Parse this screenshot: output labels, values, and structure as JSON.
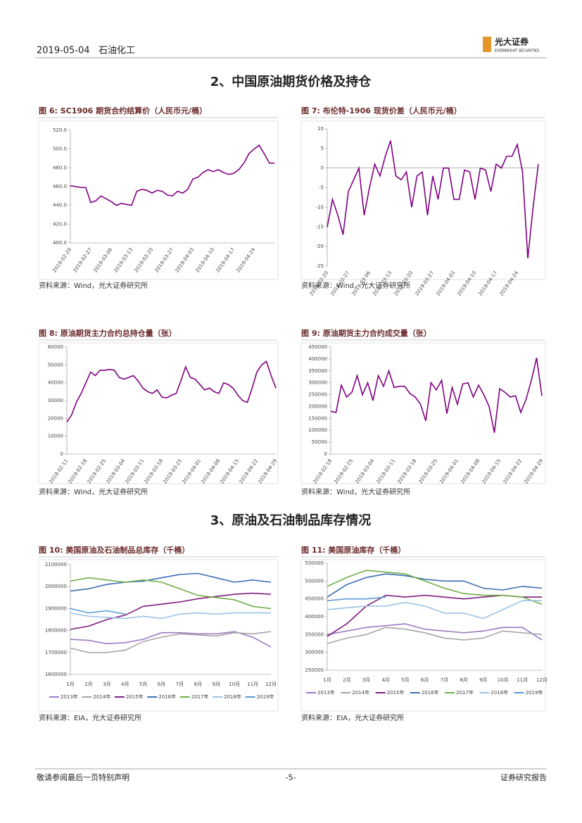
{
  "header": {
    "date": "2019-05-04",
    "sector": "石油化工",
    "logo_cn": "光大证券",
    "logo_en": "EVERBRIGHT SECURITIES"
  },
  "sections": [
    "2、中国原油期货价格及持仓",
    "3、原油及石油制品库存情况"
  ],
  "chart_data": [
    {
      "type": "line",
      "title": "图 6: SC1906 期货合约结算价（人民币元/桶）",
      "source": "资料来源：Wind，光大证券研究所",
      "color": "#800080",
      "categories": [
        "2019-02-20",
        null,
        null,
        null,
        "2019-02-27",
        null,
        null,
        null,
        "2019-03-06",
        null,
        null,
        null,
        "2019-03-13",
        null,
        null,
        null,
        "2019-03-20",
        null,
        null,
        null,
        "2019-03-27",
        null,
        null,
        null,
        "2019-04-03",
        null,
        null,
        null,
        "2019-04-10",
        null,
        null,
        null,
        "2019-04-17",
        null,
        null,
        null,
        "2019-04-24",
        null,
        null,
        null,
        null
      ],
      "values": [
        461,
        460,
        459,
        459,
        443,
        445,
        450,
        447,
        444,
        440,
        442,
        441,
        440,
        455,
        457,
        456,
        453,
        456,
        455,
        451,
        450,
        455,
        453,
        457,
        468,
        470,
        475,
        478,
        476,
        478,
        475,
        473,
        474,
        478,
        485,
        495,
        500,
        504,
        495,
        485,
        485
      ],
      "ylim": [
        400,
        520
      ],
      "yticks": [
        {
          "value": 400,
          "label": "400.0"
        },
        {
          "value": 420,
          "label": "420.0"
        },
        {
          "value": 440,
          "label": "440.0"
        },
        {
          "value": 460,
          "label": "460.0"
        },
        {
          "value": 480,
          "label": "480.0"
        },
        {
          "value": 500,
          "label": "500.0"
        },
        {
          "value": 520,
          "label": "520.0"
        }
      ]
    },
    {
      "type": "line",
      "title": "图 7: 布伦特-1906 现货价差（人民币元/桶）",
      "source": "资料来源：Wind，光大证券研究所",
      "color": "#800080",
      "categories": [
        "2019-02-20",
        null,
        null,
        null,
        "2019-02-27",
        null,
        null,
        null,
        "2019-03-06",
        null,
        null,
        null,
        "2019-03-13",
        null,
        null,
        null,
        "2019-03-20",
        null,
        null,
        null,
        "2019-03-27",
        null,
        null,
        null,
        "2019-04-03",
        null,
        null,
        null,
        "2019-04-10",
        null,
        null,
        null,
        "2019-04-17",
        null,
        null,
        null,
        "2019-04-24",
        null,
        null,
        null,
        null
      ],
      "values": [
        -15,
        -8,
        -12,
        -17,
        -6,
        -3,
        0,
        -12,
        -5,
        1,
        -2,
        3,
        7,
        -2,
        -3,
        -1,
        -10,
        -2,
        -1,
        -12,
        -2,
        -8,
        0,
        0,
        -8,
        -8,
        -0.5,
        -1,
        -8,
        0,
        -0.5,
        -6,
        1,
        0,
        3,
        3,
        6,
        -1,
        -23,
        -10,
        1
      ],
      "ylim": [
        -25,
        10
      ],
      "yticks": [
        -25,
        -20,
        -15,
        -10,
        -5,
        0,
        5,
        10
      ]
    },
    {
      "type": "line",
      "title": "图 8: 原油期货主力合约总持仓量（张）",
      "source": "资料来源：Wind，光大证券研究所",
      "color": "#800080",
      "categories": [
        "2019-02-11",
        null,
        null,
        null,
        "2019-02-18",
        null,
        null,
        null,
        "2019-02-25",
        null,
        null,
        null,
        "2019-03-04",
        null,
        null,
        null,
        "2019-03-11",
        null,
        null,
        null,
        "2019-03-18",
        null,
        null,
        null,
        "2019-03-25",
        null,
        null,
        null,
        "2019-04-01",
        null,
        null,
        null,
        "2019-04-08",
        null,
        null,
        null,
        "2019-04-15",
        null,
        null,
        null,
        "2019-04-22",
        null,
        null,
        null,
        "2019-04-29"
      ],
      "values": [
        18000,
        22000,
        29000,
        34000,
        40000,
        46000,
        44000,
        47000,
        47000,
        47500,
        47000,
        43000,
        42000,
        43000,
        44000,
        41000,
        37000,
        35000,
        34000,
        36000,
        32000,
        31500,
        33000,
        34000,
        41000,
        49000,
        43000,
        42000,
        39000,
        36000,
        37000,
        35000,
        34000,
        40000,
        39000,
        37000,
        33000,
        30000,
        29000,
        37000,
        46000,
        50000,
        52000,
        44000,
        37000
      ],
      "ylim": [
        0,
        60000
      ],
      "yticks": [
        0,
        10000,
        20000,
        30000,
        40000,
        50000,
        60000
      ]
    },
    {
      "type": "line",
      "title": "图 9: 原油期货主力合约成交量（张）",
      "source": "资料来源：Wind，光大证券研究所",
      "color": "#800080",
      "categories": [
        "2019-02-18",
        null,
        null,
        null,
        "2019-02-25",
        null,
        null,
        null,
        "2019-03-04",
        null,
        null,
        null,
        "2019-03-11",
        null,
        null,
        null,
        "2019-03-18",
        null,
        null,
        null,
        "2019-03-25",
        null,
        null,
        null,
        "2019-04-01",
        null,
        null,
        null,
        "2019-04-08",
        null,
        null,
        null,
        "2019-04-15",
        null,
        null,
        null,
        "2019-04-22",
        null,
        null,
        null,
        "2019-04-29"
      ],
      "values": [
        180000,
        175000,
        290000,
        240000,
        260000,
        330000,
        250000,
        300000,
        225000,
        330000,
        285000,
        350000,
        280000,
        285000,
        285000,
        255000,
        240000,
        210000,
        140000,
        300000,
        270000,
        310000,
        170000,
        280000,
        210000,
        295000,
        300000,
        240000,
        290000,
        250000,
        200000,
        90000,
        275000,
        260000,
        240000,
        245000,
        175000,
        230000,
        310000,
        405000,
        245000
      ],
      "ylim": [
        0,
        450000
      ],
      "yticks": [
        0,
        50000,
        100000,
        150000,
        200000,
        250000,
        300000,
        350000,
        400000,
        450000
      ]
    },
    {
      "type": "line",
      "title": "图 10: 美国原油及石油制品总库存（千桶）",
      "source": "资料来源：EIA，光大证券研究所",
      "legend": "bottom",
      "categories": [
        "1月",
        "2月",
        "3月",
        "4月",
        "5月",
        "6月",
        "7月",
        "8月",
        "9月",
        "10月",
        "11月",
        "12月"
      ],
      "series": [
        {
          "name": "2013年",
          "color": "#9b7bc4",
          "values": [
            1760000,
            1755000,
            1740000,
            1745000,
            1760000,
            1790000,
            1790000,
            1785000,
            1785000,
            1795000,
            1770000,
            1725000
          ]
        },
        {
          "name": "2014年",
          "color": "#a6a6a6",
          "values": [
            1720000,
            1700000,
            1700000,
            1710000,
            1750000,
            1770000,
            1785000,
            1780000,
            1775000,
            1790000,
            1785000,
            1795000
          ]
        },
        {
          "name": "2015年",
          "color": "#7f1f7f",
          "values": [
            1805000,
            1820000,
            1850000,
            1870000,
            1910000,
            1920000,
            1930000,
            1945000,
            1955000,
            1965000,
            1970000,
            1965000
          ]
        },
        {
          "name": "2016年",
          "color": "#3d6db5",
          "values": [
            1980000,
            1990000,
            2010000,
            2020000,
            2025000,
            2040000,
            2055000,
            2060000,
            2040000,
            2020000,
            2030000,
            2020000
          ]
        },
        {
          "name": "2017年",
          "color": "#70ad47",
          "values": [
            2025000,
            2040000,
            2030000,
            2020000,
            2030000,
            2020000,
            1990000,
            1960000,
            1950000,
            1940000,
            1910000,
            1900000
          ]
        },
        {
          "name": "2018年",
          "color": "#9dc3e6",
          "values": [
            1880000,
            1865000,
            1860000,
            1855000,
            1865000,
            1855000,
            1875000,
            1880000,
            1875000,
            1880000,
            1880000,
            1880000
          ]
        },
        {
          "name": "2019年",
          "color": "#5b9bd5",
          "values": [
            1900000,
            1880000,
            1890000,
            1875000,
            null,
            null,
            null,
            null,
            null,
            null,
            null,
            null
          ]
        }
      ],
      "ylim": [
        1600000,
        2100000
      ],
      "yticks": [
        1600000,
        1700000,
        1800000,
        1900000,
        2000000,
        2100000
      ]
    },
    {
      "type": "line",
      "title": "图 11: 美国原油库存（千桶）",
      "source": "资料来源：EIA，光大证券研究所",
      "legend": "bottom",
      "categories": [
        "1月",
        "2月",
        "3月",
        "4月",
        "5月",
        "6月",
        "7月",
        "8月",
        "9月",
        "10月",
        "11月",
        "12月"
      ],
      "series": [
        {
          "name": "2013年",
          "color": "#9b7bc4",
          "values": [
            350000,
            360000,
            370000,
            375000,
            380000,
            365000,
            360000,
            355000,
            360000,
            370000,
            370000,
            335000
          ]
        },
        {
          "name": "2014年",
          "color": "#a6a6a6",
          "values": [
            325000,
            340000,
            350000,
            370000,
            365000,
            355000,
            340000,
            335000,
            340000,
            360000,
            355000,
            350000
          ]
        },
        {
          "name": "2015年",
          "color": "#7f1f7f",
          "values": [
            345000,
            380000,
            430000,
            460000,
            455000,
            460000,
            455000,
            450000,
            455000,
            460000,
            455000,
            455000
          ]
        },
        {
          "name": "2016年",
          "color": "#3d6db5",
          "values": [
            455000,
            490000,
            510000,
            520000,
            515000,
            505000,
            500000,
            500000,
            480000,
            475000,
            485000,
            480000
          ]
        },
        {
          "name": "2017年",
          "color": "#70ad47",
          "values": [
            485000,
            510000,
            530000,
            525000,
            520000,
            500000,
            480000,
            465000,
            460000,
            460000,
            455000,
            435000
          ]
        },
        {
          "name": "2018年",
          "color": "#9dc3e6",
          "values": [
            420000,
            425000,
            430000,
            430000,
            440000,
            430000,
            410000,
            410000,
            395000,
            420000,
            445000,
            445000
          ]
        },
        {
          "name": "2019年",
          "color": "#5b9bd5",
          "values": [
            445000,
            450000,
            450000,
            455000,
            null,
            null,
            null,
            null,
            null,
            null,
            null,
            null
          ]
        }
      ],
      "ylim": [
        250000,
        550000
      ],
      "yticks": [
        250000,
        300000,
        350000,
        400000,
        450000,
        500000,
        550000
      ]
    }
  ],
  "footer": {
    "disclaimer": "敬请参阅最后一页特别声明",
    "page": "-5-",
    "doc_type": "证券研究报告"
  }
}
